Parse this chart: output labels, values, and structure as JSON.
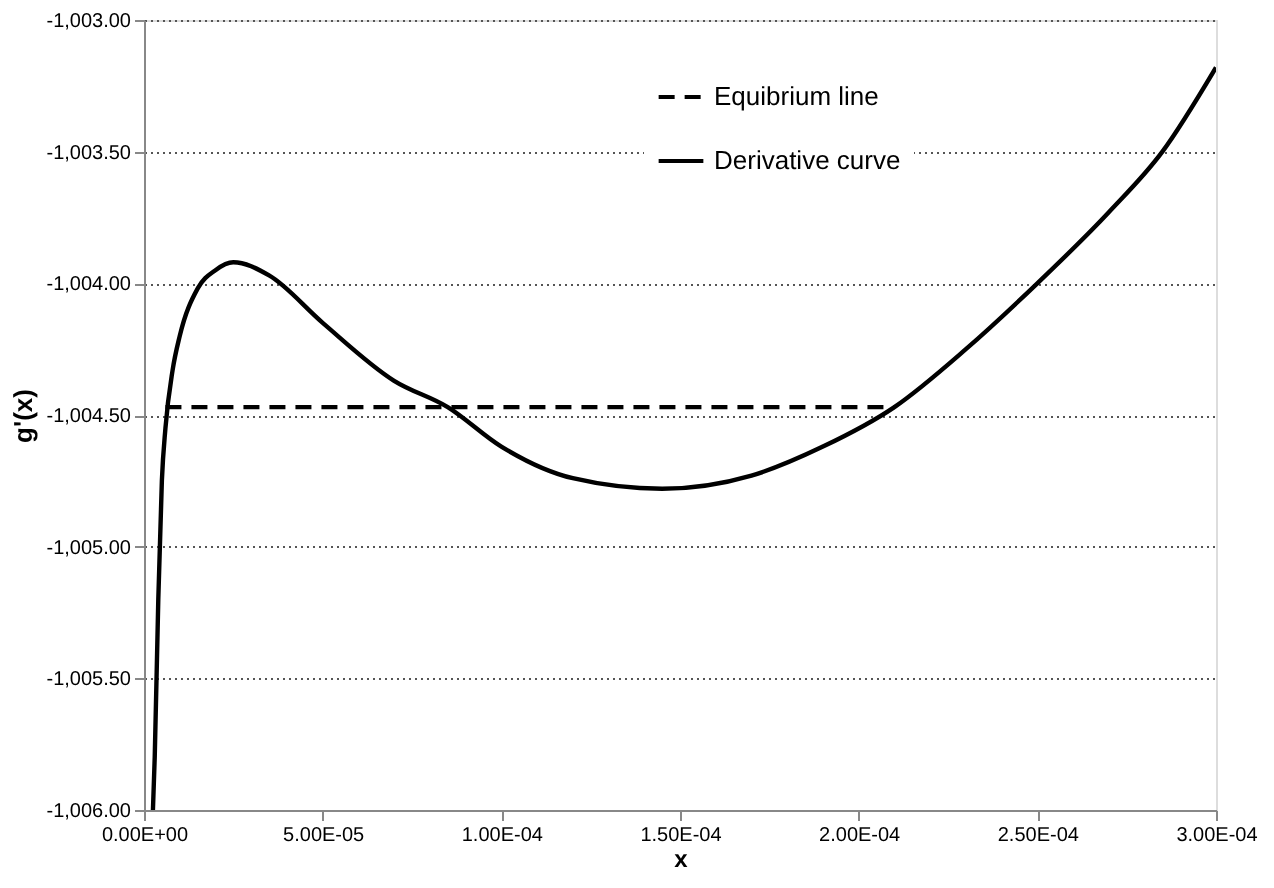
{
  "chart_data": {
    "type": "line",
    "xlabel": "x",
    "ylabel": "g'(x)",
    "xlim": [
      0,
      0.0003
    ],
    "ylim": [
      -1006,
      -1003
    ],
    "xticks": [
      {
        "value": 0,
        "label": "0.00E+00"
      },
      {
        "value": 5e-05,
        "label": "5.00E-05"
      },
      {
        "value": 0.0001,
        "label": "1.00E-04"
      },
      {
        "value": 0.00015,
        "label": "1.50E-04"
      },
      {
        "value": 0.0002,
        "label": "2.00E-04"
      },
      {
        "value": 0.00025,
        "label": "2.50E-04"
      },
      {
        "value": 0.0003,
        "label": "3.00E-04"
      }
    ],
    "yticks": [
      {
        "value": -1006,
        "label": "-1,006.00"
      },
      {
        "value": -1005.5,
        "label": "-1,005.50"
      },
      {
        "value": -1005,
        "label": "-1,005.00"
      },
      {
        "value": -1004.5,
        "label": "-1,004.50"
      },
      {
        "value": -1004,
        "label": "-1,004.00"
      },
      {
        "value": -1003.5,
        "label": "-1,003.50"
      },
      {
        "value": -1003,
        "label": "-1,003.00"
      }
    ],
    "grid": "y",
    "legend": "top",
    "marker": "none",
    "series": [
      {
        "name": "Equibrium line",
        "color": "#000000",
        "line_style": "dashed",
        "x": [
          6e-06,
          0.00021
        ],
        "values": [
          -1004.47,
          -1004.47
        ]
      },
      {
        "name": "Derivative curve",
        "color": "#000000",
        "line_style": "solid",
        "x": [
          2.5e-06,
          3e-06,
          4e-06,
          5e-06,
          6e-06,
          8e-06,
          1e-05,
          1.5e-05,
          2e-05,
          2.5e-05,
          3.5e-05,
          5e-05,
          7e-05,
          8.5e-05,
          0.0001,
          0.00012,
          0.000145,
          0.00017,
          0.00019,
          0.00021,
          0.00023,
          0.00025,
          0.00027,
          0.000285,
          0.0003
        ],
        "values": [
          -1006,
          -1005.8,
          -1005.2,
          -1004.75,
          -1004.55,
          -1004.33,
          -1004.2,
          -1004.02,
          -1003.95,
          -1003.92,
          -1003.97,
          -1004.15,
          -1004.37,
          -1004.47,
          -1004.62,
          -1004.74,
          -1004.78,
          -1004.73,
          -1004.62,
          -1004.47,
          -1004.25,
          -1004.0,
          -1003.73,
          -1003.5,
          -1003.18
        ]
      }
    ]
  }
}
